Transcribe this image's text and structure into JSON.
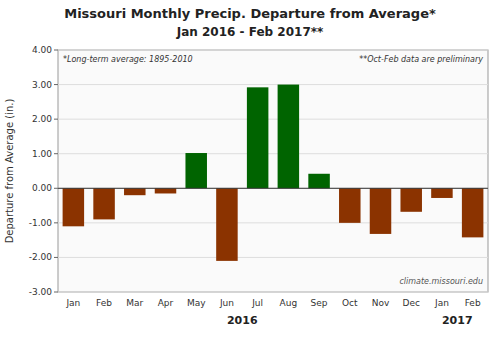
{
  "chart_data": {
    "type": "bar",
    "title": "Missouri Monthly Precip. Departure from Average*",
    "subtitle": "Jan 2016 - Feb 2017**",
    "y_label": "Departure from Average (in.)",
    "annotations": [
      "*Long-term average: 1895-2010",
      "**Oct-Feb data are preliminary",
      "climate.missouri.edu",
      "2016",
      "2017"
    ],
    "categories": [
      "Jan",
      "Feb",
      "Mar",
      "Apr",
      "May",
      "Jun",
      "Jul",
      "Aug",
      "Sep",
      "Oct",
      "Nov",
      "Dec",
      "Jan",
      "Feb"
    ],
    "values": [
      -1.1,
      -0.9,
      -0.2,
      -0.15,
      1.02,
      -2.1,
      2.92,
      3.0,
      0.42,
      -1.0,
      -1.32,
      -0.68,
      -0.28,
      -1.42
    ],
    "colors": [
      "#8B3300",
      "#8B3300",
      "#8B3300",
      "#8B3300",
      "#006400",
      "#8B3300",
      "#006400",
      "#006400",
      "#006400",
      "#8B3300",
      "#8B3300",
      "#8B3300",
      "#8B3300",
      "#8B3300"
    ],
    "ylim": [
      -3.0,
      4.0
    ],
    "yticks": [
      {
        "value": -3.0,
        "label": "-3.00"
      },
      {
        "value": -2.0,
        "label": "-2.00"
      },
      {
        "value": -1.0,
        "label": "-1.00"
      },
      {
        "value": 0.0,
        "label": "0.00"
      },
      {
        "value": 1.0,
        "label": "1.00"
      },
      {
        "value": 2.0,
        "label": "2.00"
      },
      {
        "value": 3.0,
        "label": "3.00"
      },
      {
        "value": 4.0,
        "label": "4.00"
      }
    ],
    "grid": true
  }
}
